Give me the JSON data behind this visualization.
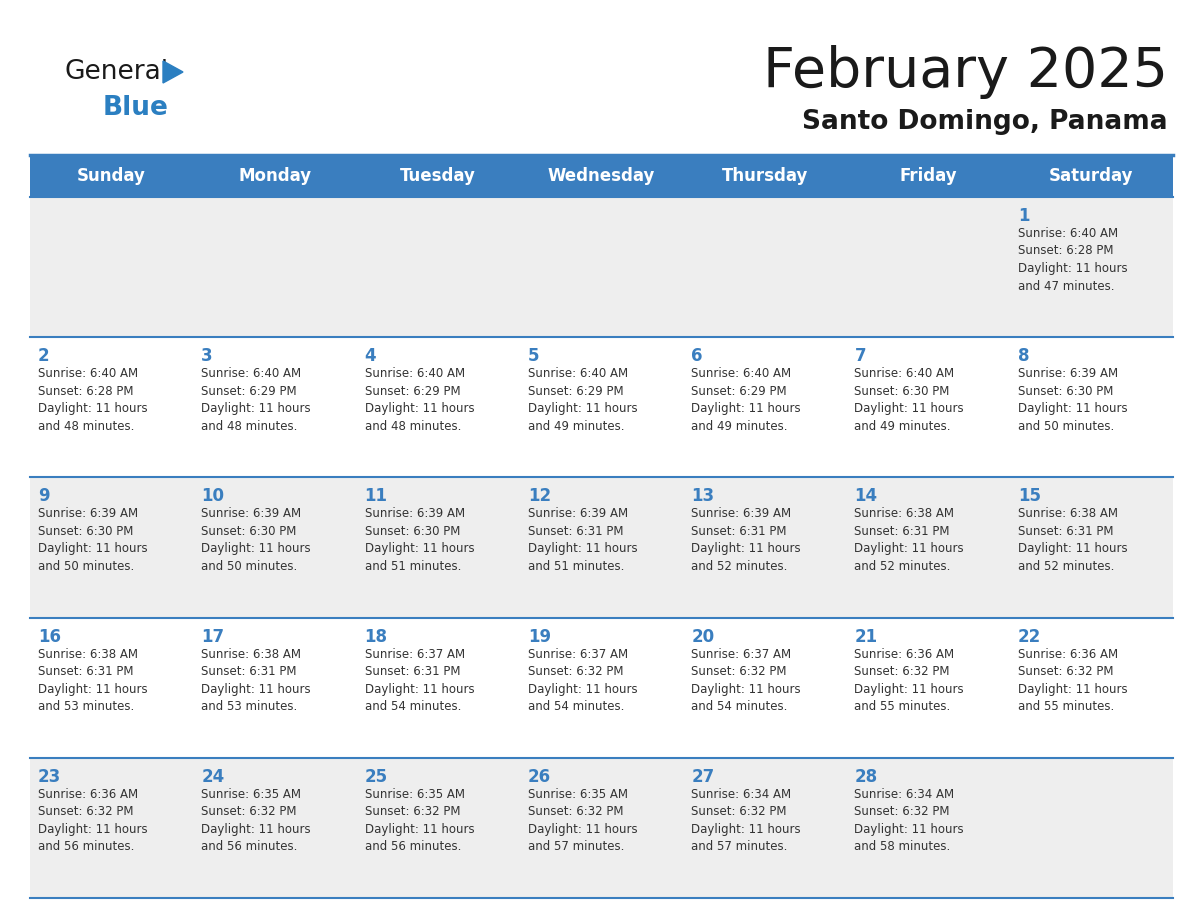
{
  "title": "February 2025",
  "subtitle": "Santo Domingo, Panama",
  "header_bg": "#3A7EBF",
  "header_text_color": "#FFFFFF",
  "cell_bg_row0": "#EEEEEE",
  "cell_bg_row1": "#FFFFFF",
  "cell_border_color": "#3A7EBF",
  "day_number_color": "#3A7EBF",
  "text_color": "#333333",
  "days_of_week": [
    "Sunday",
    "Monday",
    "Tuesday",
    "Wednesday",
    "Thursday",
    "Friday",
    "Saturday"
  ],
  "calendar": [
    [
      null,
      null,
      null,
      null,
      null,
      null,
      1
    ],
    [
      2,
      3,
      4,
      5,
      6,
      7,
      8
    ],
    [
      9,
      10,
      11,
      12,
      13,
      14,
      15
    ],
    [
      16,
      17,
      18,
      19,
      20,
      21,
      22
    ],
    [
      23,
      24,
      25,
      26,
      27,
      28,
      null
    ]
  ],
  "sun_data": {
    "1": {
      "rise": "6:40 AM",
      "set": "6:28 PM",
      "daylight": "11 hours and 47 minutes."
    },
    "2": {
      "rise": "6:40 AM",
      "set": "6:28 PM",
      "daylight": "11 hours and 48 minutes."
    },
    "3": {
      "rise": "6:40 AM",
      "set": "6:29 PM",
      "daylight": "11 hours and 48 minutes."
    },
    "4": {
      "rise": "6:40 AM",
      "set": "6:29 PM",
      "daylight": "11 hours and 48 minutes."
    },
    "5": {
      "rise": "6:40 AM",
      "set": "6:29 PM",
      "daylight": "11 hours and 49 minutes."
    },
    "6": {
      "rise": "6:40 AM",
      "set": "6:29 PM",
      "daylight": "11 hours and 49 minutes."
    },
    "7": {
      "rise": "6:40 AM",
      "set": "6:30 PM",
      "daylight": "11 hours and 49 minutes."
    },
    "8": {
      "rise": "6:39 AM",
      "set": "6:30 PM",
      "daylight": "11 hours and 50 minutes."
    },
    "9": {
      "rise": "6:39 AM",
      "set": "6:30 PM",
      "daylight": "11 hours and 50 minutes."
    },
    "10": {
      "rise": "6:39 AM",
      "set": "6:30 PM",
      "daylight": "11 hours and 50 minutes."
    },
    "11": {
      "rise": "6:39 AM",
      "set": "6:30 PM",
      "daylight": "11 hours and 51 minutes."
    },
    "12": {
      "rise": "6:39 AM",
      "set": "6:31 PM",
      "daylight": "11 hours and 51 minutes."
    },
    "13": {
      "rise": "6:39 AM",
      "set": "6:31 PM",
      "daylight": "11 hours and 52 minutes."
    },
    "14": {
      "rise": "6:38 AM",
      "set": "6:31 PM",
      "daylight": "11 hours and 52 minutes."
    },
    "15": {
      "rise": "6:38 AM",
      "set": "6:31 PM",
      "daylight": "11 hours and 52 minutes."
    },
    "16": {
      "rise": "6:38 AM",
      "set": "6:31 PM",
      "daylight": "11 hours and 53 minutes."
    },
    "17": {
      "rise": "6:38 AM",
      "set": "6:31 PM",
      "daylight": "11 hours and 53 minutes."
    },
    "18": {
      "rise": "6:37 AM",
      "set": "6:31 PM",
      "daylight": "11 hours and 54 minutes."
    },
    "19": {
      "rise": "6:37 AM",
      "set": "6:32 PM",
      "daylight": "11 hours and 54 minutes."
    },
    "20": {
      "rise": "6:37 AM",
      "set": "6:32 PM",
      "daylight": "11 hours and 54 minutes."
    },
    "21": {
      "rise": "6:36 AM",
      "set": "6:32 PM",
      "daylight": "11 hours and 55 minutes."
    },
    "22": {
      "rise": "6:36 AM",
      "set": "6:32 PM",
      "daylight": "11 hours and 55 minutes."
    },
    "23": {
      "rise": "6:36 AM",
      "set": "6:32 PM",
      "daylight": "11 hours and 56 minutes."
    },
    "24": {
      "rise": "6:35 AM",
      "set": "6:32 PM",
      "daylight": "11 hours and 56 minutes."
    },
    "25": {
      "rise": "6:35 AM",
      "set": "6:32 PM",
      "daylight": "11 hours and 56 minutes."
    },
    "26": {
      "rise": "6:35 AM",
      "set": "6:32 PM",
      "daylight": "11 hours and 57 minutes."
    },
    "27": {
      "rise": "6:34 AM",
      "set": "6:32 PM",
      "daylight": "11 hours and 57 minutes."
    },
    "28": {
      "rise": "6:34 AM",
      "set": "6:32 PM",
      "daylight": "11 hours and 58 minutes."
    }
  },
  "logo_color1": "#1A1A1A",
  "logo_color2": "#2B7FC1",
  "logo_triangle_color": "#2B7FC1",
  "fig_width": 11.88,
  "fig_height": 9.18,
  "dpi": 100
}
